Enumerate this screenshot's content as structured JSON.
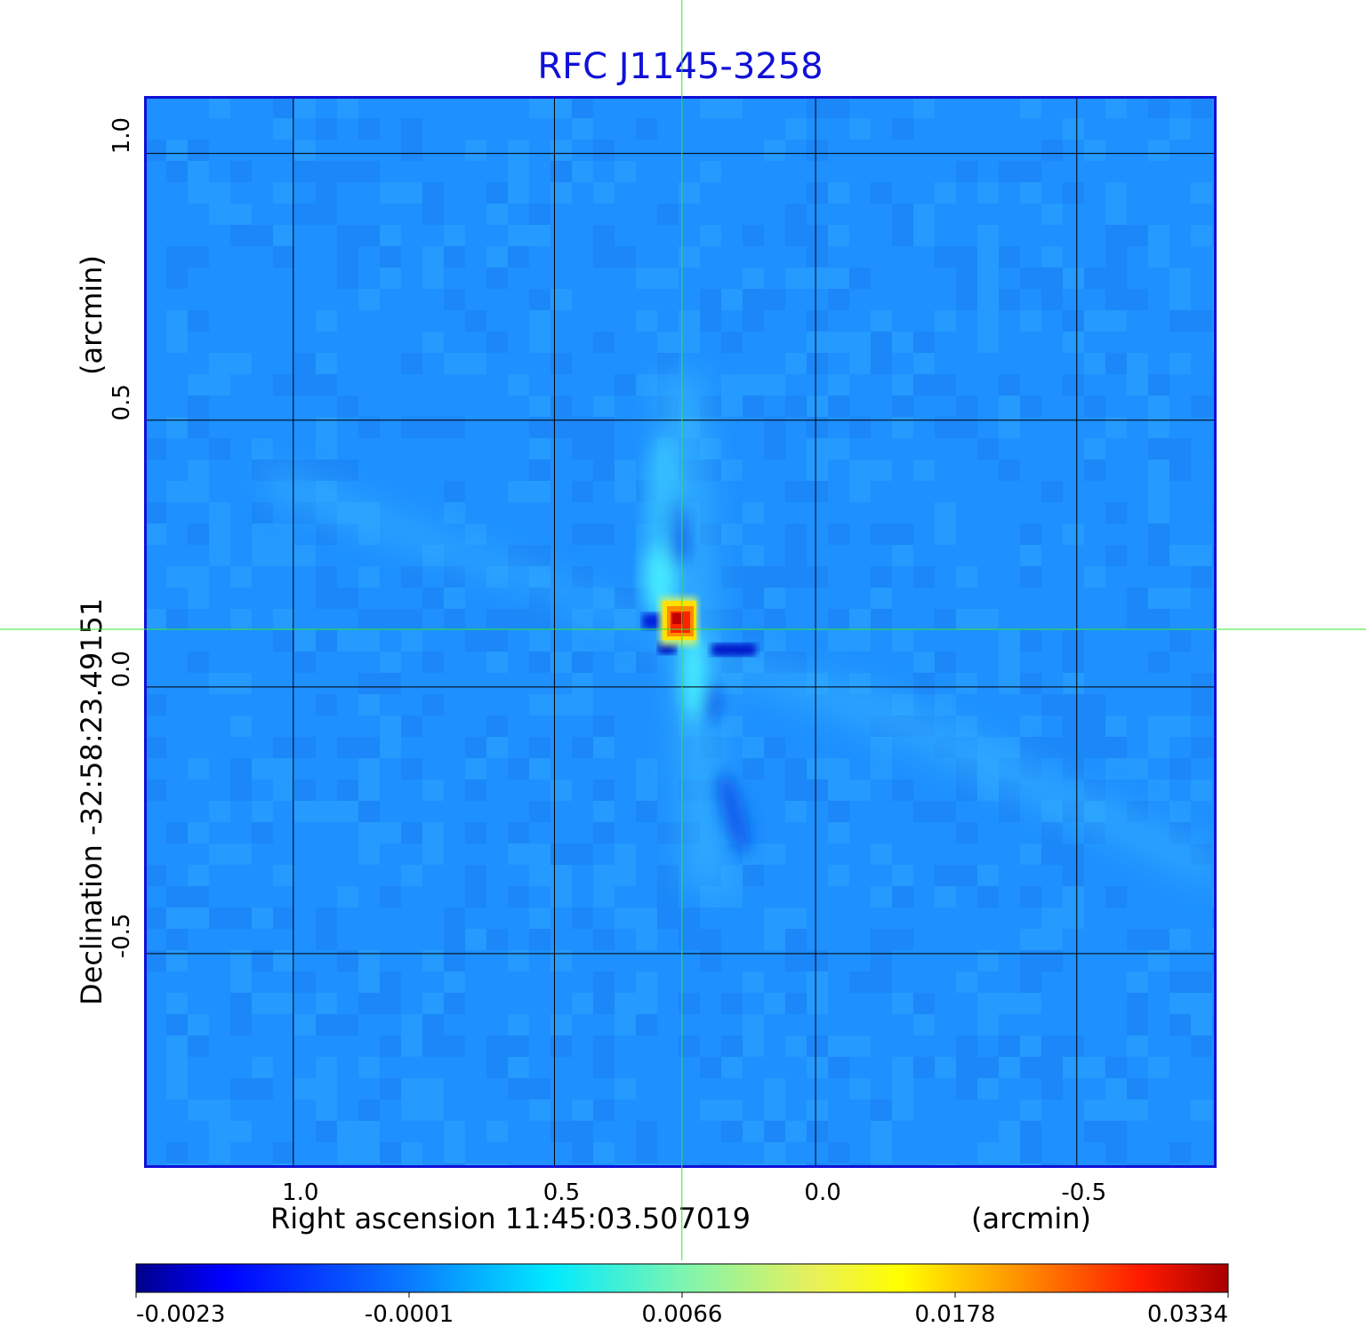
{
  "chart_data": {
    "type": "heatmap",
    "title": "RFC J1145-3258",
    "xlabel": "Right ascension  11:45:03.507019",
    "xunit": "(arcmin)",
    "ylabel": "Declination  -32:58:23.49151",
    "yunit": "(arcmin)",
    "x_ticks": [
      "1.0",
      "0.5",
      "0.0",
      "-0.5"
    ],
    "y_ticks": [
      "1.0",
      "0.5",
      "0.0",
      "-0.5"
    ],
    "x_tick_values": [
      1.0,
      0.5,
      0.0,
      -0.5
    ],
    "y_tick_values": [
      1.0,
      0.5,
      0.0,
      -0.5
    ],
    "xlim": [
      1.284,
      -0.766
    ],
    "ylim": [
      -0.9,
      1.106
    ],
    "grid": true,
    "crosshair": {
      "x": 0.256,
      "y": 0.108
    },
    "source_peak": {
      "x": 0.256,
      "y": 0.108,
      "value": 0.0334
    },
    "colormap": "jet",
    "colorbar_ticks": [
      "-0.0023",
      "-0.0001",
      "0.0066",
      "0.0178",
      "0.0334"
    ],
    "colorbar_values": [
      -0.0023,
      -0.0001,
      0.0066,
      0.0178,
      0.0334
    ],
    "colors": {
      "title": "#1010d8",
      "frame": "#1010d8",
      "crosshair": "#2ee82e",
      "background": "#1e90ff"
    }
  }
}
